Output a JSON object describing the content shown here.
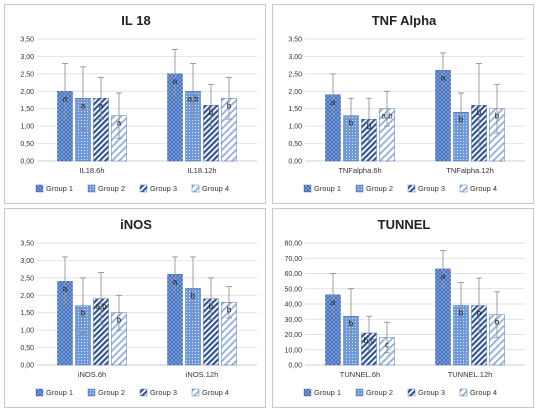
{
  "legend_labels": [
    "Group 1",
    "Group 2",
    "Group 3",
    "Group 4"
  ],
  "colors": {
    "group1": "#4472c4",
    "group2": "#5b8fd6",
    "group3": "#2f5597",
    "group4": "#8fb0e0",
    "error": "#888888",
    "grid": "#d9d9d9"
  },
  "chart_data": [
    {
      "type": "bar",
      "title": "IL 18",
      "categories": [
        "IL18.6h",
        "IL18.12h"
      ],
      "y_ticks": [
        "0,00",
        "0,50",
        "1,00",
        "1,50",
        "2,00",
        "2,50",
        "3,00",
        "3,50"
      ],
      "ylim": [
        0,
        3.5
      ],
      "series": [
        {
          "name": "Group 1",
          "values": [
            2.0,
            2.5
          ],
          "errors": [
            0.8,
            0.7
          ],
          "labels": [
            "a",
            "a"
          ]
        },
        {
          "name": "Group 2",
          "values": [
            1.8,
            2.0
          ],
          "errors": [
            0.9,
            0.8
          ],
          "labels": [
            "a",
            "a,b"
          ]
        },
        {
          "name": "Group 3",
          "values": [
            1.8,
            1.6
          ],
          "errors": [
            0.6,
            0.6
          ],
          "labels": [
            "a",
            "b"
          ]
        },
        {
          "name": "Group 4",
          "values": [
            1.3,
            1.8
          ],
          "errors": [
            0.65,
            0.6
          ],
          "labels": [
            "a",
            "b"
          ]
        }
      ]
    },
    {
      "type": "bar",
      "title": "TNF Alpha",
      "categories": [
        "TNFalpha.6h",
        "TNFalpha.12h"
      ],
      "y_ticks": [
        "0,00",
        "0,50",
        "1,00",
        "1,50",
        "2,00",
        "2,50",
        "3,00",
        "3,50"
      ],
      "ylim": [
        0,
        3.5
      ],
      "series": [
        {
          "name": "Group 1",
          "values": [
            1.9,
            2.6
          ],
          "errors": [
            0.6,
            0.5
          ],
          "labels": [
            "a",
            "a"
          ]
        },
        {
          "name": "Group 2",
          "values": [
            1.3,
            1.4
          ],
          "errors": [
            0.5,
            0.55
          ],
          "labels": [
            "b",
            "b"
          ]
        },
        {
          "name": "Group 3",
          "values": [
            1.2,
            1.6
          ],
          "errors": [
            0.6,
            1.2
          ],
          "labels": [
            "b",
            "b"
          ]
        },
        {
          "name": "Group 4",
          "values": [
            1.5,
            1.5
          ],
          "errors": [
            0.5,
            0.7
          ],
          "labels": [
            "a,b",
            "b"
          ]
        }
      ]
    },
    {
      "type": "bar",
      "title": "iNOS",
      "categories": [
        "iNOS.6h",
        "iNOS.12h"
      ],
      "y_ticks": [
        "0,00",
        "0,50",
        "1,00",
        "1,50",
        "2,00",
        "2,50",
        "3,00",
        "3,50"
      ],
      "ylim": [
        0,
        3.5
      ],
      "series": [
        {
          "name": "Group 1",
          "values": [
            2.4,
            2.6
          ],
          "errors": [
            0.7,
            0.5
          ],
          "labels": [
            "a",
            "a"
          ]
        },
        {
          "name": "Group 2",
          "values": [
            1.7,
            2.2
          ],
          "errors": [
            0.8,
            0.9
          ],
          "labels": [
            "b",
            "b"
          ]
        },
        {
          "name": "Group 3",
          "values": [
            1.9,
            1.9
          ],
          "errors": [
            0.75,
            0.6
          ],
          "labels": [
            "a,b",
            "b"
          ]
        },
        {
          "name": "Group 4",
          "values": [
            1.5,
            1.8
          ],
          "errors": [
            0.5,
            0.45
          ],
          "labels": [
            "b",
            "b"
          ]
        }
      ]
    },
    {
      "type": "bar",
      "title": "TUNNEL",
      "categories": [
        "TUNNEL.6h",
        "TUNNEL.12h"
      ],
      "y_ticks": [
        "0,00",
        "10,00",
        "20,00",
        "30,00",
        "40,00",
        "50,00",
        "60,00",
        "70,00",
        "80,00"
      ],
      "ylim": [
        0,
        80
      ],
      "series": [
        {
          "name": "Group 1",
          "values": [
            46,
            63
          ],
          "errors": [
            14,
            12
          ],
          "labels": [
            "a",
            "a"
          ]
        },
        {
          "name": "Group 2",
          "values": [
            32,
            39
          ],
          "errors": [
            18,
            15
          ],
          "labels": [
            "b",
            "b"
          ]
        },
        {
          "name": "Group 3",
          "values": [
            21,
            39
          ],
          "errors": [
            11,
            18
          ],
          "labels": [
            "b,c",
            "b"
          ]
        },
        {
          "name": "Group 4",
          "values": [
            18,
            33
          ],
          "errors": [
            10,
            15
          ],
          "labels": [
            "c",
            "b"
          ]
        }
      ]
    }
  ]
}
